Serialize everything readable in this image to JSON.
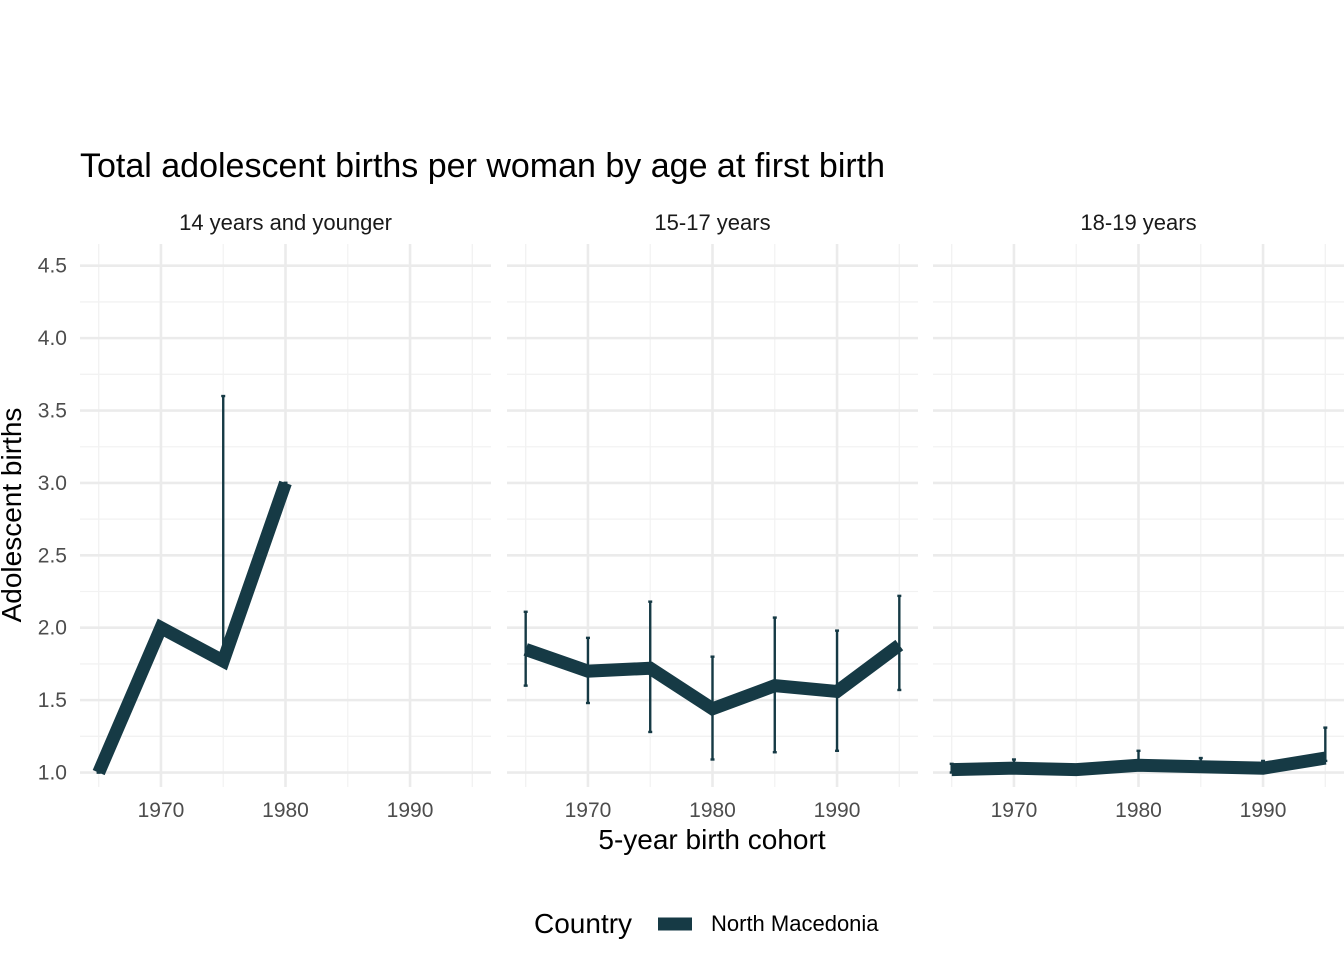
{
  "chart_data": {
    "type": "line",
    "title": "Total adolescent births per woman by age at first birth",
    "xlabel": "5-year birth cohort",
    "ylabel": "Adolescent births",
    "xlim": [
      1963.5,
      1996.5
    ],
    "ylim": [
      0.9,
      4.65
    ],
    "x_ticks": [
      1970,
      1980,
      1990
    ],
    "x_tick_labels": [
      "1970",
      "1980",
      "1990"
    ],
    "y_ticks": [
      1.0,
      1.5,
      2.0,
      2.5,
      3.0,
      3.5,
      4.0,
      4.5
    ],
    "y_tick_labels": [
      "1.0",
      "1.5",
      "2.0",
      "2.5",
      "3.0",
      "3.5",
      "4.0",
      "4.5"
    ],
    "legend": {
      "title": "Country",
      "entries": [
        "North Macedonia"
      ]
    },
    "series_color": "#163a45",
    "facets": [
      {
        "label": "14 years and younger",
        "series": [
          {
            "name": "North Macedonia",
            "x": [
              1965,
              1970,
              1975,
              1980
            ],
            "values": [
              1.0,
              2.0,
              1.77,
              3.0
            ],
            "lower": [
              1.0,
              2.0,
              1.77,
              3.0
            ],
            "upper": [
              1.0,
              2.0,
              3.6,
              3.0
            ]
          }
        ]
      },
      {
        "label": "15-17 years",
        "series": [
          {
            "name": "North Macedonia",
            "x": [
              1965,
              1970,
              1975,
              1980,
              1985,
              1990,
              1995
            ],
            "values": [
              1.85,
              1.7,
              1.72,
              1.44,
              1.6,
              1.56,
              1.88
            ],
            "lower": [
              1.6,
              1.48,
              1.28,
              1.09,
              1.14,
              1.15,
              1.57
            ],
            "upper": [
              2.11,
              1.93,
              2.18,
              1.8,
              2.07,
              1.98,
              2.22
            ]
          }
        ]
      },
      {
        "label": "18-19 years",
        "series": [
          {
            "name": "North Macedonia",
            "x": [
              1965,
              1970,
              1975,
              1980,
              1985,
              1990,
              1995
            ],
            "values": [
              1.02,
              1.03,
              1.02,
              1.05,
              1.04,
              1.03,
              1.1
            ],
            "lower": [
              1.0,
              1.01,
              1.0,
              1.02,
              1.02,
              1.01,
              1.08
            ],
            "upper": [
              1.06,
              1.09,
              1.03,
              1.15,
              1.1,
              1.08,
              1.31
            ]
          }
        ]
      }
    ]
  }
}
